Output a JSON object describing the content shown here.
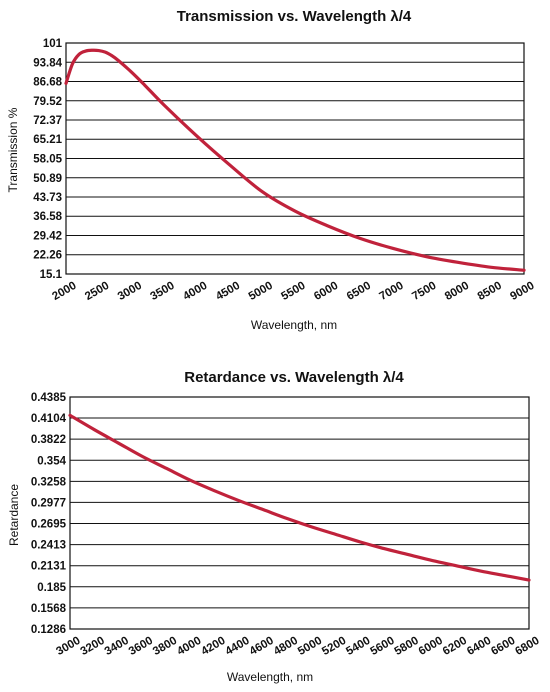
{
  "chart_data": [
    {
      "type": "line",
      "title": "Transmission vs. Wavelength λ/4",
      "xlabel": "Wavelength, nm",
      "ylabel": "Transmission %",
      "x_ticks": [
        "2000",
        "2500",
        "3000",
        "3500",
        "4000",
        "4500",
        "5000",
        "5500",
        "6000",
        "6500",
        "7000",
        "7500",
        "8000",
        "8500",
        "9000"
      ],
      "y_ticks": [
        "101",
        "93.84",
        "86.68",
        "79.52",
        "72.37",
        "65.21",
        "58.05",
        "50.89",
        "43.73",
        "36.58",
        "29.42",
        "22.26",
        "15.1"
      ],
      "xlim": [
        2000,
        9000
      ],
      "ylim": [
        15.1,
        101
      ],
      "grid": "horizontal",
      "line_color": "#c0223b",
      "series": [
        {
          "x": [
            2000,
            2100,
            2200,
            2300,
            2400,
            2500,
            2600,
            2700,
            2800,
            3000,
            3200,
            3500,
            4000,
            4500,
            5000,
            5500,
            6000,
            6500,
            7000,
            7500,
            8000,
            8500,
            9000
          ],
          "values": [
            86.0,
            93.3,
            96.8,
            98.0,
            98.3,
            98.2,
            97.6,
            96.3,
            94.5,
            90.2,
            85.4,
            77.9,
            66.4,
            55.7,
            45.7,
            38.5,
            33.0,
            28.3,
            24.6,
            21.6,
            19.4,
            17.6,
            16.5
          ]
        }
      ]
    },
    {
      "type": "line",
      "title": "Retardance vs. Wavelength λ/4",
      "xlabel": "Wavelength, nm",
      "ylabel": "Retardance",
      "x_ticks": [
        "3000",
        "3200",
        "3400",
        "3600",
        "3800",
        "4000",
        "4200",
        "4400",
        "4600",
        "4800",
        "5000",
        "5200",
        "5400",
        "5600",
        "5800",
        "6000",
        "6200",
        "6400",
        "6600",
        "6800"
      ],
      "y_ticks": [
        "0.4385",
        "0.4104",
        "0.3822",
        "0.354",
        "0.3258",
        "0.2977",
        "0.2695",
        "0.2413",
        "0.2131",
        "0.185",
        "0.1568",
        "0.1286"
      ],
      "xlim": [
        3000,
        6800
      ],
      "ylim": [
        0.1286,
        0.4385
      ],
      "grid": "horizontal",
      "line_color": "#c0223b",
      "series": [
        {
          "x": [
            3000,
            3200,
            3400,
            3600,
            3800,
            4000,
            4200,
            4400,
            4600,
            4800,
            5000,
            5200,
            5400,
            5600,
            5800,
            6000,
            6200,
            6400,
            6600,
            6800
          ],
          "values": [
            0.414,
            0.395,
            0.377,
            0.359,
            0.343,
            0.327,
            0.313,
            0.3,
            0.288,
            0.276,
            0.265,
            0.255,
            0.245,
            0.236,
            0.228,
            0.22,
            0.213,
            0.206,
            0.2,
            0.194
          ]
        }
      ]
    }
  ]
}
